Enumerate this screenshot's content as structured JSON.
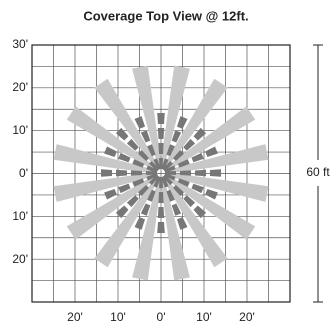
{
  "title": "Coverage Top View @ 12ft.",
  "y_labels": [
    "30'",
    "20'",
    "10'",
    "0'",
    "10'",
    "20'"
  ],
  "x_labels": [
    "20'",
    "10'",
    "0'",
    "10'",
    "20'"
  ],
  "dimension_label": "60 ft"
}
